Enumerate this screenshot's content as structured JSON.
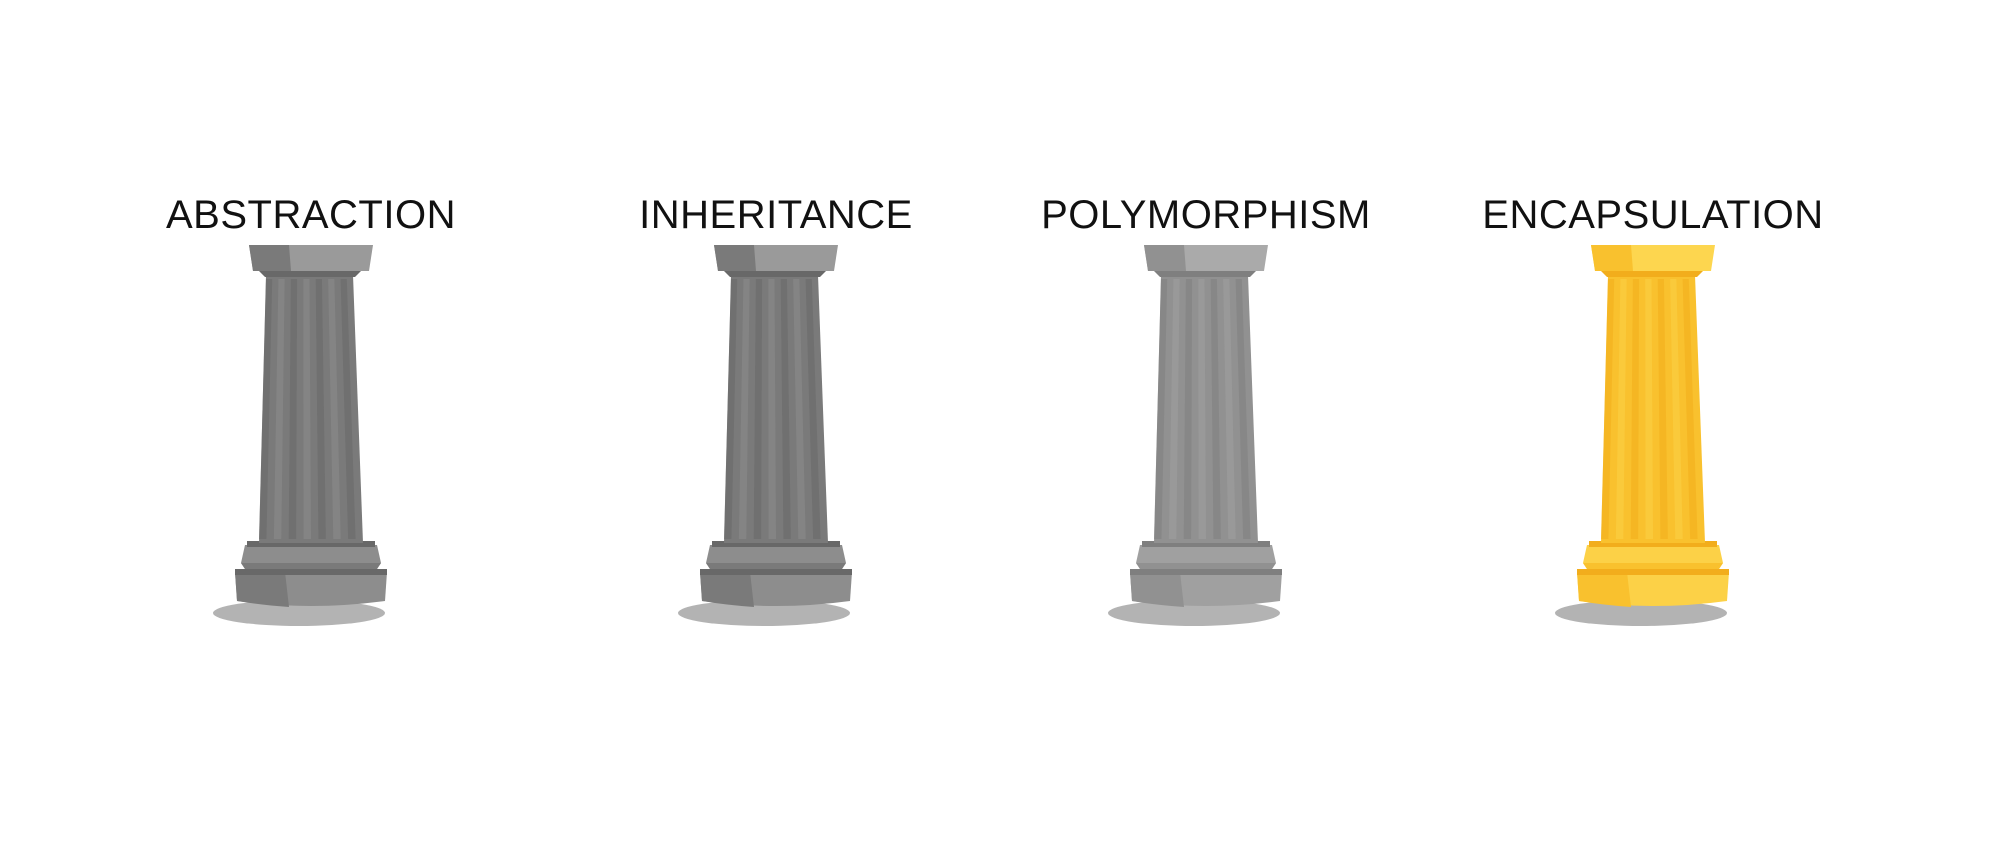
{
  "pillars": [
    {
      "label": "ABSTRACTION",
      "highlighted": false,
      "colors": {
        "light": "#8d8d8d",
        "mid": "#7a7a7a",
        "dark": "#686868",
        "top": "#9a9a9a"
      }
    },
    {
      "label": "INHERITANCE",
      "highlighted": false,
      "colors": {
        "light": "#8d8d8d",
        "mid": "#7a7a7a",
        "dark": "#686868",
        "top": "#9a9a9a"
      }
    },
    {
      "label": "POLYMORPHISM",
      "highlighted": false,
      "colors": {
        "light": "#a0a0a0",
        "mid": "#919191",
        "dark": "#7f7f7f",
        "top": "#aaaaaa"
      }
    },
    {
      "label": "ENCAPSULATION",
      "highlighted": true,
      "colors": {
        "light": "#fcd147",
        "mid": "#f9c12e",
        "dark": "#f2ad1c",
        "top": "#fdd64f"
      }
    }
  ],
  "shadow_color": "#b3b3b3"
}
